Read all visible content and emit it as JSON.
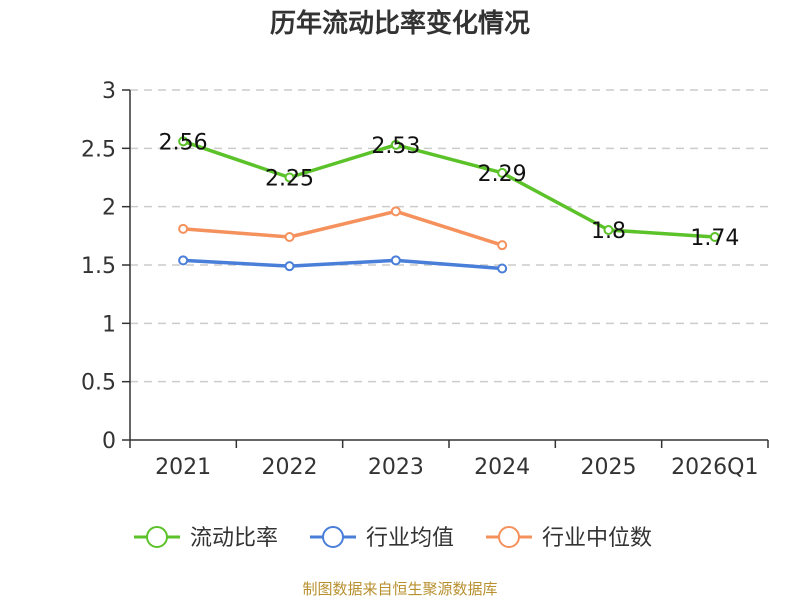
{
  "chart_data": {
    "type": "line",
    "title": "历年流动比率变化情况",
    "xlabel": "",
    "ylabel": "",
    "categories": [
      "2021",
      "2022",
      "2023",
      "2024",
      "2025",
      "2026Q1"
    ],
    "ylim": [
      0,
      3
    ],
    "yticks": [
      "0",
      "0.5",
      "1",
      "1.5",
      "2",
      "2.5",
      "3"
    ],
    "grid": true,
    "legend_position": "bottom",
    "series": [
      {
        "name": "流动比率",
        "color": "#5cc22a",
        "values": [
          2.56,
          2.25,
          2.53,
          2.29,
          1.8,
          1.74
        ],
        "labels": [
          "2.56",
          "2.25",
          "2.53",
          "2.29",
          "1.8",
          "1.74"
        ]
      },
      {
        "name": "行业均值",
        "color": "#4a7fd9",
        "values": [
          1.54,
          1.49,
          1.54,
          1.47,
          null,
          null
        ]
      },
      {
        "name": "行业中位数",
        "color": "#f5915c",
        "values": [
          1.81,
          1.74,
          1.96,
          1.67,
          null,
          null
        ]
      }
    ],
    "source_note": "制图数据来自恒生聚源数据库"
  }
}
